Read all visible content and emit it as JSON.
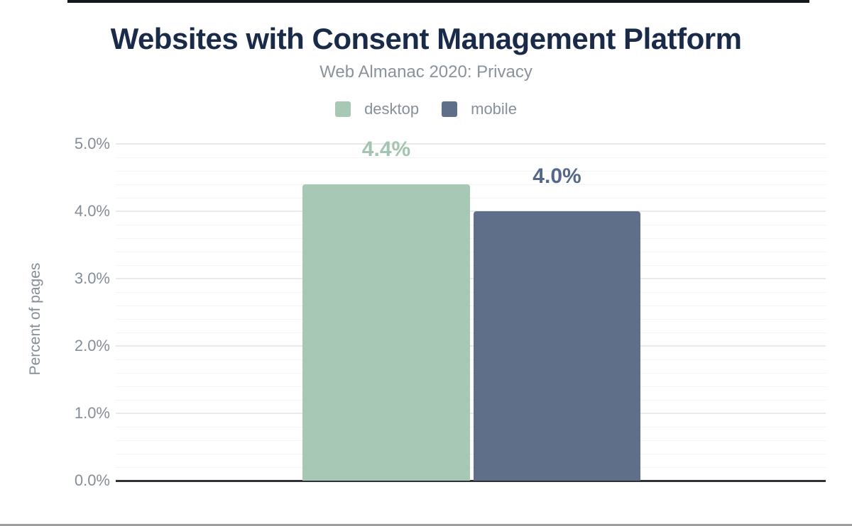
{
  "header": {
    "title": "Websites with Consent Management Platform",
    "subtitle": "Web Almanac 2020: Privacy"
  },
  "legend": {
    "items": [
      {
        "label": "desktop",
        "color": "#a8c8b6"
      },
      {
        "label": "mobile",
        "color": "#5f6f8a"
      }
    ]
  },
  "chart_data": {
    "type": "bar",
    "title": "Websites with Consent Management Platform",
    "subtitle": "Web Almanac 2020: Privacy",
    "categories": [
      ""
    ],
    "series": [
      {
        "name": "desktop",
        "values": [
          4.4
        ],
        "data_labels": [
          "4.4%"
        ],
        "color": "#a8c8b6",
        "label_color": "#a3c4b1"
      },
      {
        "name": "mobile",
        "values": [
          4.0
        ],
        "data_labels": [
          "4.0%"
        ],
        "color": "#5f6f8a",
        "label_color": "#55678a"
      }
    ],
    "xlabel": "",
    "ylabel": "Percent of pages",
    "ylim": [
      0,
      5
    ],
    "yticks": [
      {
        "value": 0,
        "label": "0.0%"
      },
      {
        "value": 1,
        "label": "1.0%"
      },
      {
        "value": 2,
        "label": "2.0%"
      },
      {
        "value": 3,
        "label": "3.0%"
      },
      {
        "value": 4,
        "label": "4.0%"
      },
      {
        "value": 5,
        "label": "5.0%"
      }
    ],
    "minor_tick_step": 0.2,
    "grid": "on",
    "legend_position": "top"
  },
  "colors": {
    "title_text": "#1a2b49",
    "muted_text": "#878f98",
    "axis_line": "#2e3236",
    "gridline_major": "#e9e9e9",
    "gridline_minor": "#f3f3f3",
    "top_rule": "#14181c",
    "bottom_rule": "#9e9e9e"
  }
}
